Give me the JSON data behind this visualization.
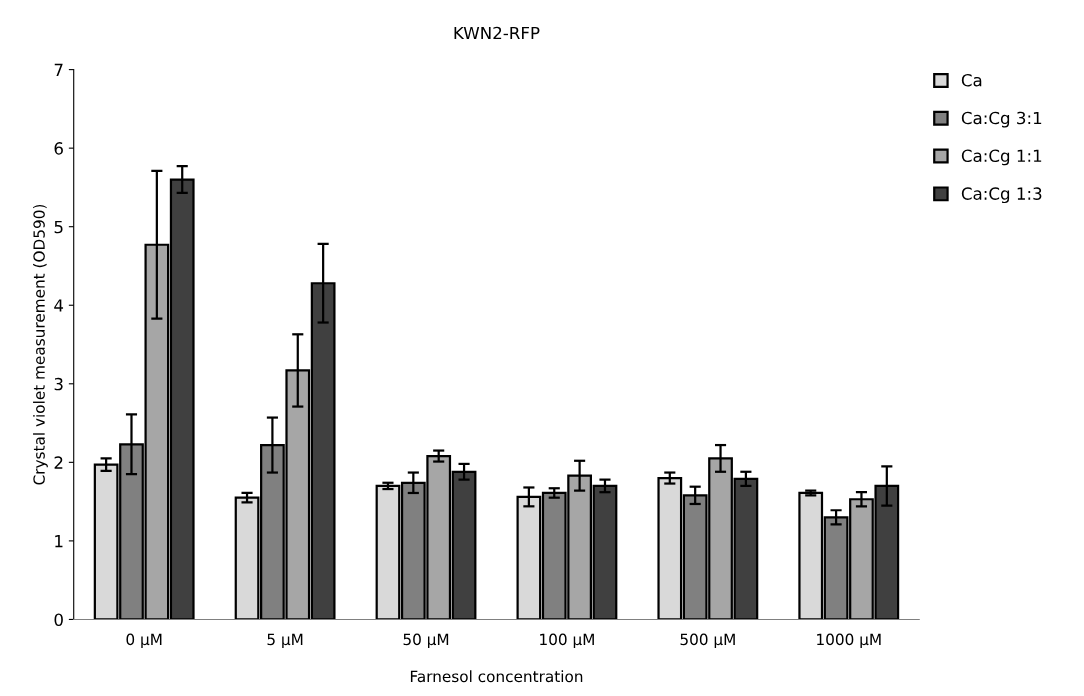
{
  "chart_data": {
    "type": "bar",
    "title": "KWN2-RFP",
    "xlabel": "Farnesol concentration",
    "ylabel": "Crystal violet measurement (OD590)",
    "categories": [
      "0 µM",
      "5 µM",
      "50 µM",
      "100 µM",
      "500 µM",
      "1000 µM"
    ],
    "series": [
      {
        "name": "Ca",
        "color": "#d9d9d9",
        "values": [
          1.97,
          1.55,
          1.7,
          1.56,
          1.8,
          1.61
        ],
        "errors": [
          0.08,
          0.06,
          0.04,
          0.12,
          0.07,
          0.03
        ]
      },
      {
        "name": "Ca:Cg 3:1",
        "color": "#808080",
        "values": [
          2.23,
          2.22,
          1.74,
          1.61,
          1.58,
          1.3
        ],
        "errors": [
          0.38,
          0.35,
          0.13,
          0.06,
          0.11,
          0.09
        ]
      },
      {
        "name": "Ca:Cg 1:1",
        "color": "#a6a6a6",
        "values": [
          4.77,
          3.17,
          2.08,
          1.83,
          2.05,
          1.53
        ],
        "errors": [
          0.94,
          0.46,
          0.07,
          0.19,
          0.17,
          0.09
        ]
      },
      {
        "name": "Ca:Cg 1:3",
        "color": "#404040",
        "values": [
          5.6,
          4.28,
          1.88,
          1.7,
          1.79,
          1.7
        ],
        "errors": [
          0.17,
          0.5,
          0.1,
          0.08,
          0.09,
          0.25
        ]
      }
    ],
    "ylim": [
      0,
      7
    ],
    "yticks": [
      0,
      1,
      2,
      3,
      4,
      5,
      6,
      7
    ],
    "grid": false,
    "legend": "top right"
  }
}
